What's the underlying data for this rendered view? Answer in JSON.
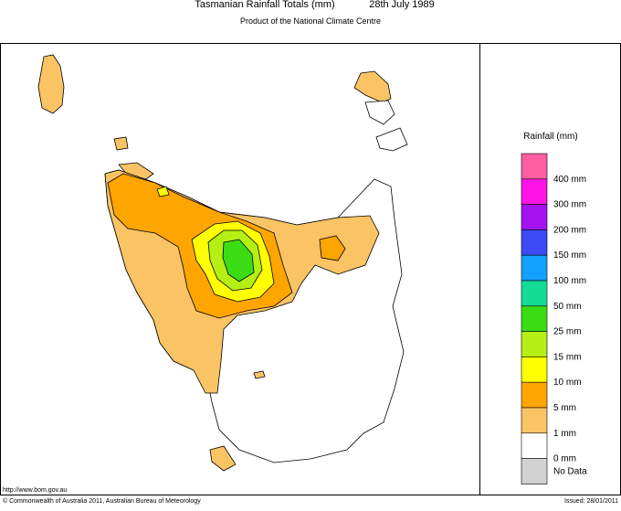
{
  "header": {
    "title": "Tasmanian Rainfall Totals (mm)",
    "date": "28th July 1989",
    "subtitle": "Product of the National Climate Centre"
  },
  "legend": {
    "title": "Rainfall (mm)",
    "colors": [
      "#ff5fa0",
      "#ff14e6",
      "#a514f0",
      "#3c4bf5",
      "#14a0ff",
      "#14dc96",
      "#3cdc14",
      "#b4f014",
      "#ffff00",
      "#ffa500",
      "#fac364",
      "#ffffff"
    ],
    "labels": [
      "400 mm",
      "300 mm",
      "200 mm",
      "150 mm",
      "100 mm",
      "50 mm",
      "25 mm",
      "15 mm",
      "10 mm",
      "5 mm",
      "1 mm",
      "0 mm"
    ],
    "no_data": {
      "color": "#d2d2d2",
      "label": "No Data"
    }
  },
  "footer": {
    "url": "http://www.bom.gov.au",
    "copyright": "© Commonwealth of Australia 2011, Australian Bureau of Meteorology",
    "issued": "Issued: 28/01/2011"
  }
}
